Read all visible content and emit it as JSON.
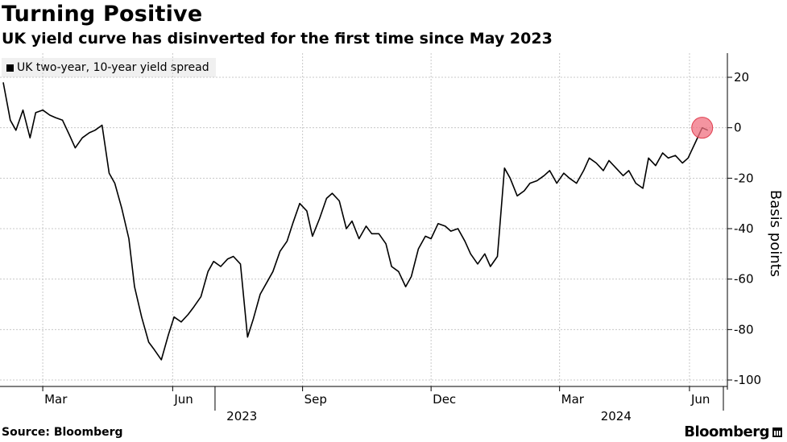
{
  "title": "Turning Positive",
  "subtitle": "UK yield curve has disinverted for the first time since May 2023",
  "source": "Source: Bloomberg",
  "brand": "Bloomberg",
  "colors": {
    "line": "#000000",
    "marker": "#f07080",
    "grid": "#c8c8c8",
    "legend_bg": "#f0f0f0"
  },
  "chart_data": {
    "type": "line",
    "title": "Turning Positive",
    "subtitle": "UK yield curve has disinverted for the first time since May 2023",
    "ylabel": "Basis points",
    "ylim": [
      -100,
      20
    ],
    "y_ticks": [
      20,
      0,
      -20,
      -40,
      -60,
      -80,
      -100
    ],
    "x_tick_labels": [
      "Mar",
      "Jun",
      "Sep",
      "Dec",
      "Mar",
      "Jun"
    ],
    "year_labels": [
      "2023",
      "2024"
    ],
    "grid": true,
    "legend_position": "top-left",
    "highlight": "last point circled",
    "series": [
      {
        "name": "UK two-year, 10-year yield spread",
        "x": [
          "2023-02-01",
          "2023-02-06",
          "2023-02-10",
          "2023-02-15",
          "2023-02-20",
          "2023-02-24",
          "2023-03-01",
          "2023-03-06",
          "2023-03-10",
          "2023-03-15",
          "2023-03-20",
          "2023-03-24",
          "2023-03-29",
          "2023-04-03",
          "2023-04-07",
          "2023-04-12",
          "2023-04-17",
          "2023-04-21",
          "2023-04-26",
          "2023-05-01",
          "2023-05-05",
          "2023-05-10",
          "2023-05-15",
          "2023-05-19",
          "2023-05-24",
          "2023-05-29",
          "2023-06-02",
          "2023-06-07",
          "2023-06-12",
          "2023-06-16",
          "2023-06-21",
          "2023-06-26",
          "2023-06-30",
          "2023-07-05",
          "2023-07-10",
          "2023-07-14",
          "2023-07-19",
          "2023-07-24",
          "2023-07-28",
          "2023-08-02",
          "2023-08-07",
          "2023-08-11",
          "2023-08-16",
          "2023-08-21",
          "2023-08-25",
          "2023-08-30",
          "2023-09-04",
          "2023-09-08",
          "2023-09-13",
          "2023-09-18",
          "2023-09-22",
          "2023-09-27",
          "2023-10-02",
          "2023-10-06",
          "2023-10-11",
          "2023-10-16",
          "2023-10-20",
          "2023-10-25",
          "2023-10-30",
          "2023-11-03",
          "2023-11-08",
          "2023-11-13",
          "2023-11-17",
          "2023-11-22",
          "2023-11-27",
          "2023-12-01",
          "2023-12-06",
          "2023-12-11",
          "2023-12-15",
          "2023-12-20",
          "2023-12-25",
          "2023-12-29",
          "2024-01-03",
          "2024-01-08",
          "2024-01-12",
          "2024-01-17",
          "2024-01-22",
          "2024-01-26",
          "2024-01-31",
          "2024-02-05",
          "2024-02-09",
          "2024-02-14",
          "2024-02-19",
          "2024-02-23",
          "2024-02-28",
          "2024-03-04",
          "2024-03-08",
          "2024-03-13",
          "2024-03-18",
          "2024-03-22",
          "2024-03-27",
          "2024-04-01",
          "2024-04-05",
          "2024-04-10",
          "2024-04-15",
          "2024-04-19",
          "2024-04-24",
          "2024-04-29",
          "2024-05-03",
          "2024-05-08",
          "2024-05-13",
          "2024-05-17",
          "2024-05-22",
          "2024-05-27",
          "2024-05-31",
          "2024-06-05",
          "2024-06-10",
          "2024-06-14"
        ],
        "values": [
          18,
          3,
          -1,
          7,
          -4,
          6,
          7,
          5,
          4,
          3,
          -3,
          -8,
          -4,
          -2,
          -1,
          1,
          -18,
          -22,
          -32,
          -44,
          -63,
          -75,
          -85,
          -88,
          -92,
          -82,
          -75,
          -77,
          -74,
          -71,
          -67,
          -57,
          -53,
          -55,
          -52,
          -51,
          -54,
          -83,
          -76,
          -66,
          -61,
          -57,
          -49,
          -45,
          -38,
          -30,
          -33,
          -43,
          -36,
          -28,
          -26,
          -29,
          -40,
          -37,
          -44,
          -39,
          -42,
          -42,
          -46,
          -55,
          -57,
          -63,
          -59,
          -48,
          -43,
          -44,
          -38,
          -39,
          -41,
          -40,
          -45,
          -50,
          -54,
          -50,
          -55,
          -51,
          -16,
          -20,
          -27,
          -25,
          -22,
          -21,
          -19,
          -17,
          -22,
          -18,
          -20,
          -22,
          -17,
          -12,
          -14,
          -17,
          -13,
          -16,
          -19,
          -17,
          -22,
          -24,
          -12,
          -15,
          -10,
          -12,
          -11,
          -14,
          -12,
          -6,
          0,
          -1
        ]
      }
    ]
  }
}
